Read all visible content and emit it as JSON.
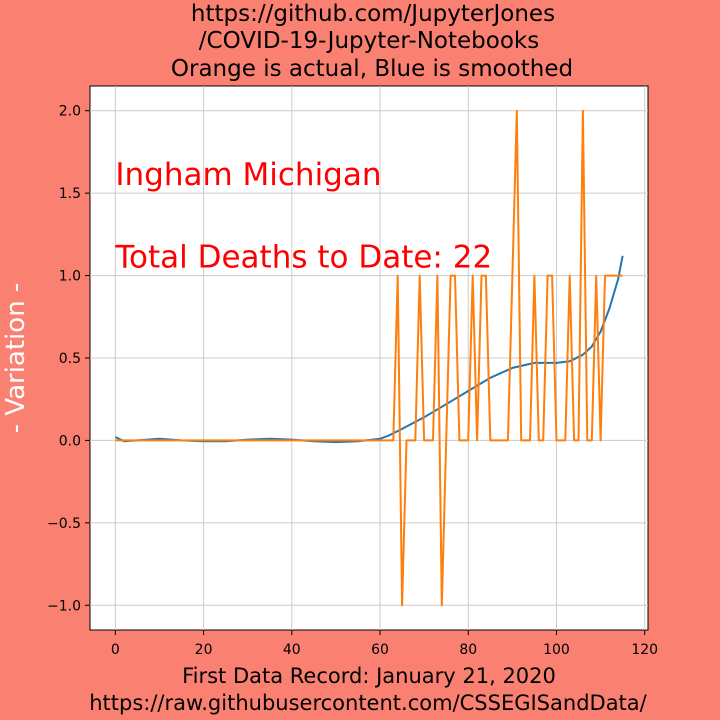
{
  "colors": {
    "background": "#fa8072",
    "plot_bg": "#ffffff",
    "grid": "#cccccc",
    "smoothed": "#1f77b4",
    "actual": "#ff7f0e",
    "annotation": "#ff0000",
    "ylabel": "#ffffff"
  },
  "chart_data": {
    "type": "line",
    "title_lines": [
      "https://github.com/JupyterJones",
      "/COVID-19-Jupyter-Notebooks",
      "Orange is actual, Blue is smoothed"
    ],
    "xlabel_lines": [
      "First Data Record: January 21, 2020",
      "https://raw.githubusercontent.com/CSSEGISandData/"
    ],
    "ylabel": "- Variation -",
    "xlim": [
      -5.75,
      120.75
    ],
    "ylim": [
      -1.15,
      2.15
    ],
    "xticks": [
      0,
      20,
      40,
      60,
      80,
      100,
      120
    ],
    "xtick_labels": [
      "0",
      "20",
      "40",
      "60",
      "80",
      "100",
      "120"
    ],
    "yticks": [
      -1.0,
      -0.5,
      0.0,
      0.5,
      1.0,
      1.5,
      2.0
    ],
    "ytick_labels": [
      "−1.0",
      "−0.5",
      "0.0",
      "0.5",
      "1.0",
      "1.5",
      "2.0"
    ],
    "grid": true,
    "annotations": [
      {
        "text": "Ingham Michigan",
        "x": 0,
        "y": 1.55
      },
      {
        "text": "Total Deaths to Date: 22",
        "x": 0,
        "y": 1.05
      }
    ],
    "series": [
      {
        "key": "smoothed",
        "x": [
          0,
          2,
          5,
          10,
          15,
          20,
          25,
          30,
          35,
          40,
          45,
          50,
          55,
          60,
          62,
          65,
          70,
          75,
          80,
          85,
          90,
          95,
          100,
          103,
          106,
          108,
          110,
          112,
          114,
          115
        ],
        "y": [
          0.02,
          -0.005,
          0.0,
          0.01,
          0.0,
          -0.005,
          -0.005,
          0.005,
          0.01,
          0.005,
          -0.005,
          -0.01,
          -0.005,
          0.01,
          0.03,
          0.07,
          0.14,
          0.22,
          0.3,
          0.38,
          0.44,
          0.47,
          0.47,
          0.48,
          0.52,
          0.57,
          0.66,
          0.8,
          0.98,
          1.12
        ]
      },
      {
        "key": "actual",
        "x": [
          0,
          63,
          64,
          65,
          66,
          67,
          68,
          69,
          70,
          71,
          72,
          73,
          74,
          75,
          76,
          77,
          78,
          79,
          80,
          81,
          82,
          83,
          84,
          85,
          86,
          87,
          88,
          89,
          90,
          91,
          92,
          93,
          94,
          95,
          96,
          97,
          98,
          99,
          100,
          101,
          102,
          103,
          104,
          105,
          106,
          107,
          108,
          109,
          110,
          111,
          112,
          113,
          114,
          115
        ],
        "y": [
          0,
          0,
          1,
          -1,
          0,
          0,
          0,
          1,
          0,
          0,
          0,
          1,
          -1,
          0,
          1,
          1,
          0,
          0,
          0,
          1,
          0,
          1,
          1,
          0,
          0,
          0,
          0,
          0,
          1,
          2,
          0,
          0,
          0,
          1,
          0,
          0,
          1,
          1,
          0,
          0,
          0,
          1,
          0,
          0,
          2,
          0,
          0,
          1,
          0,
          1,
          1,
          1,
          1,
          1
        ]
      }
    ]
  }
}
